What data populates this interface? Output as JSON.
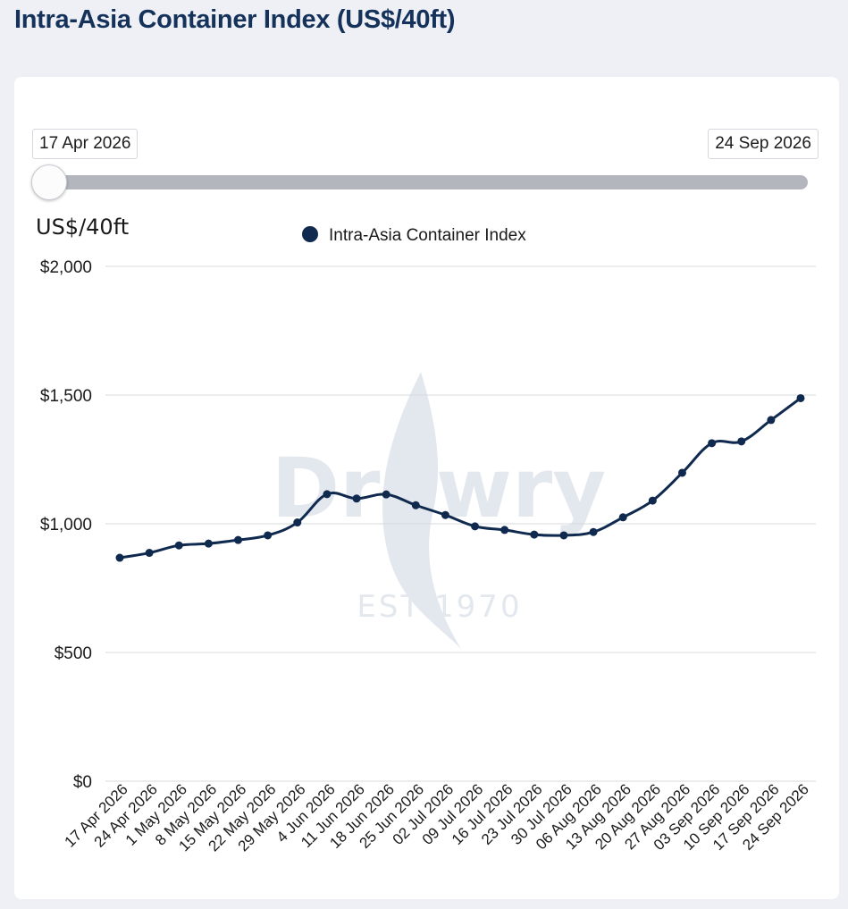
{
  "header": {
    "title": "Intra-Asia Container Index (US$/40ft)"
  },
  "range": {
    "start_label": "17 Apr 2026",
    "end_label": "24 Sep 2026"
  },
  "watermark": {
    "name": "Drewry",
    "established": "EST 1970"
  },
  "colors": {
    "series": "#102a4f",
    "grid": "#d7d9dd",
    "watermark": "#e3e7ee"
  },
  "chart_data": {
    "type": "line",
    "title": "Intra-Asia Container Index (US$/40ft)",
    "ylabel": "US$/40ft",
    "xlabel": "",
    "ylim": [
      0,
      2000
    ],
    "y_ticks": [
      0,
      500,
      1000,
      1500,
      2000
    ],
    "y_tick_labels": [
      "$0",
      "$500",
      "$1,000",
      "$1,500",
      "$2,000"
    ],
    "grid": true,
    "legend_position": "top-center",
    "categories": [
      "17 Apr 2026",
      "24 Apr 2026",
      "1 May 2026",
      "8 May 2026",
      "15 May 2026",
      "22 May 2026",
      "29 May 2026",
      "4 Jun 2026",
      "11 Jun 2026",
      "18 Jun 2026",
      "25 Jun 2026",
      "02 Jul 2026",
      "09 Jul 2026",
      "16 Jul 2026",
      "23 Jul 2026",
      "30 Jul 2026",
      "06 Aug 2026",
      "13 Aug 2026",
      "20 Aug 2026",
      "27 Aug 2026",
      "03 Sep 2026",
      "10 Sep 2026",
      "17 Sep 2026",
      "24 Sep 2026"
    ],
    "series": [
      {
        "name": "Intra-Asia Container Index",
        "values": [
          868,
          887,
          916,
          923,
          937,
          955,
          1005,
          1115,
          1098,
          1114,
          1072,
          1034,
          990,
          976,
          958,
          955,
          968,
          1025,
          1090,
          1198,
          1313,
          1320,
          1403,
          1488
        ]
      }
    ]
  }
}
